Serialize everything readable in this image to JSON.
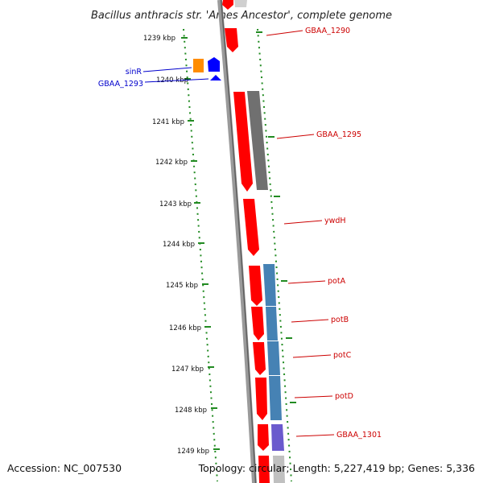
{
  "title": "Bacillus anthracis str. 'Ames Ancestor', complete genome",
  "footer": {
    "accession": "Accession: NC_007530",
    "topology": "Topology: circular; Length: 5,227,419 bp; Genes: 5,336"
  },
  "colors": {
    "forward_gene": "#ff0000",
    "reverse_gene": "#0000ff",
    "label_forward": "#cc0000",
    "label_reverse": "#0000cc",
    "tick": "#228b22",
    "backbone": "#999999"
  },
  "scale": {
    "unit": "kbp",
    "ticks": [
      {
        "label": "1239 kbp"
      },
      {
        "label": "1240 kbp"
      },
      {
        "label": "1241 kbp"
      },
      {
        "label": "1242 kbp"
      },
      {
        "label": "1243 kbp"
      },
      {
        "label": "1244 kbp"
      },
      {
        "label": "1245 kbp"
      },
      {
        "label": "1246 kbp"
      },
      {
        "label": "1247 kbp"
      },
      {
        "label": "1248 kbp"
      },
      {
        "label": "1249 kbp"
      }
    ]
  },
  "gene_labels": [
    {
      "text": "GBAA_1290"
    },
    {
      "text": "sinR"
    },
    {
      "text": "GBAA_1293"
    },
    {
      "text": "GBAA_1295"
    },
    {
      "text": "ywdH"
    },
    {
      "text": "potA"
    },
    {
      "text": "potB"
    },
    {
      "text": "potC"
    },
    {
      "text": "potD"
    },
    {
      "text": "GBAA_1301"
    }
  ]
}
